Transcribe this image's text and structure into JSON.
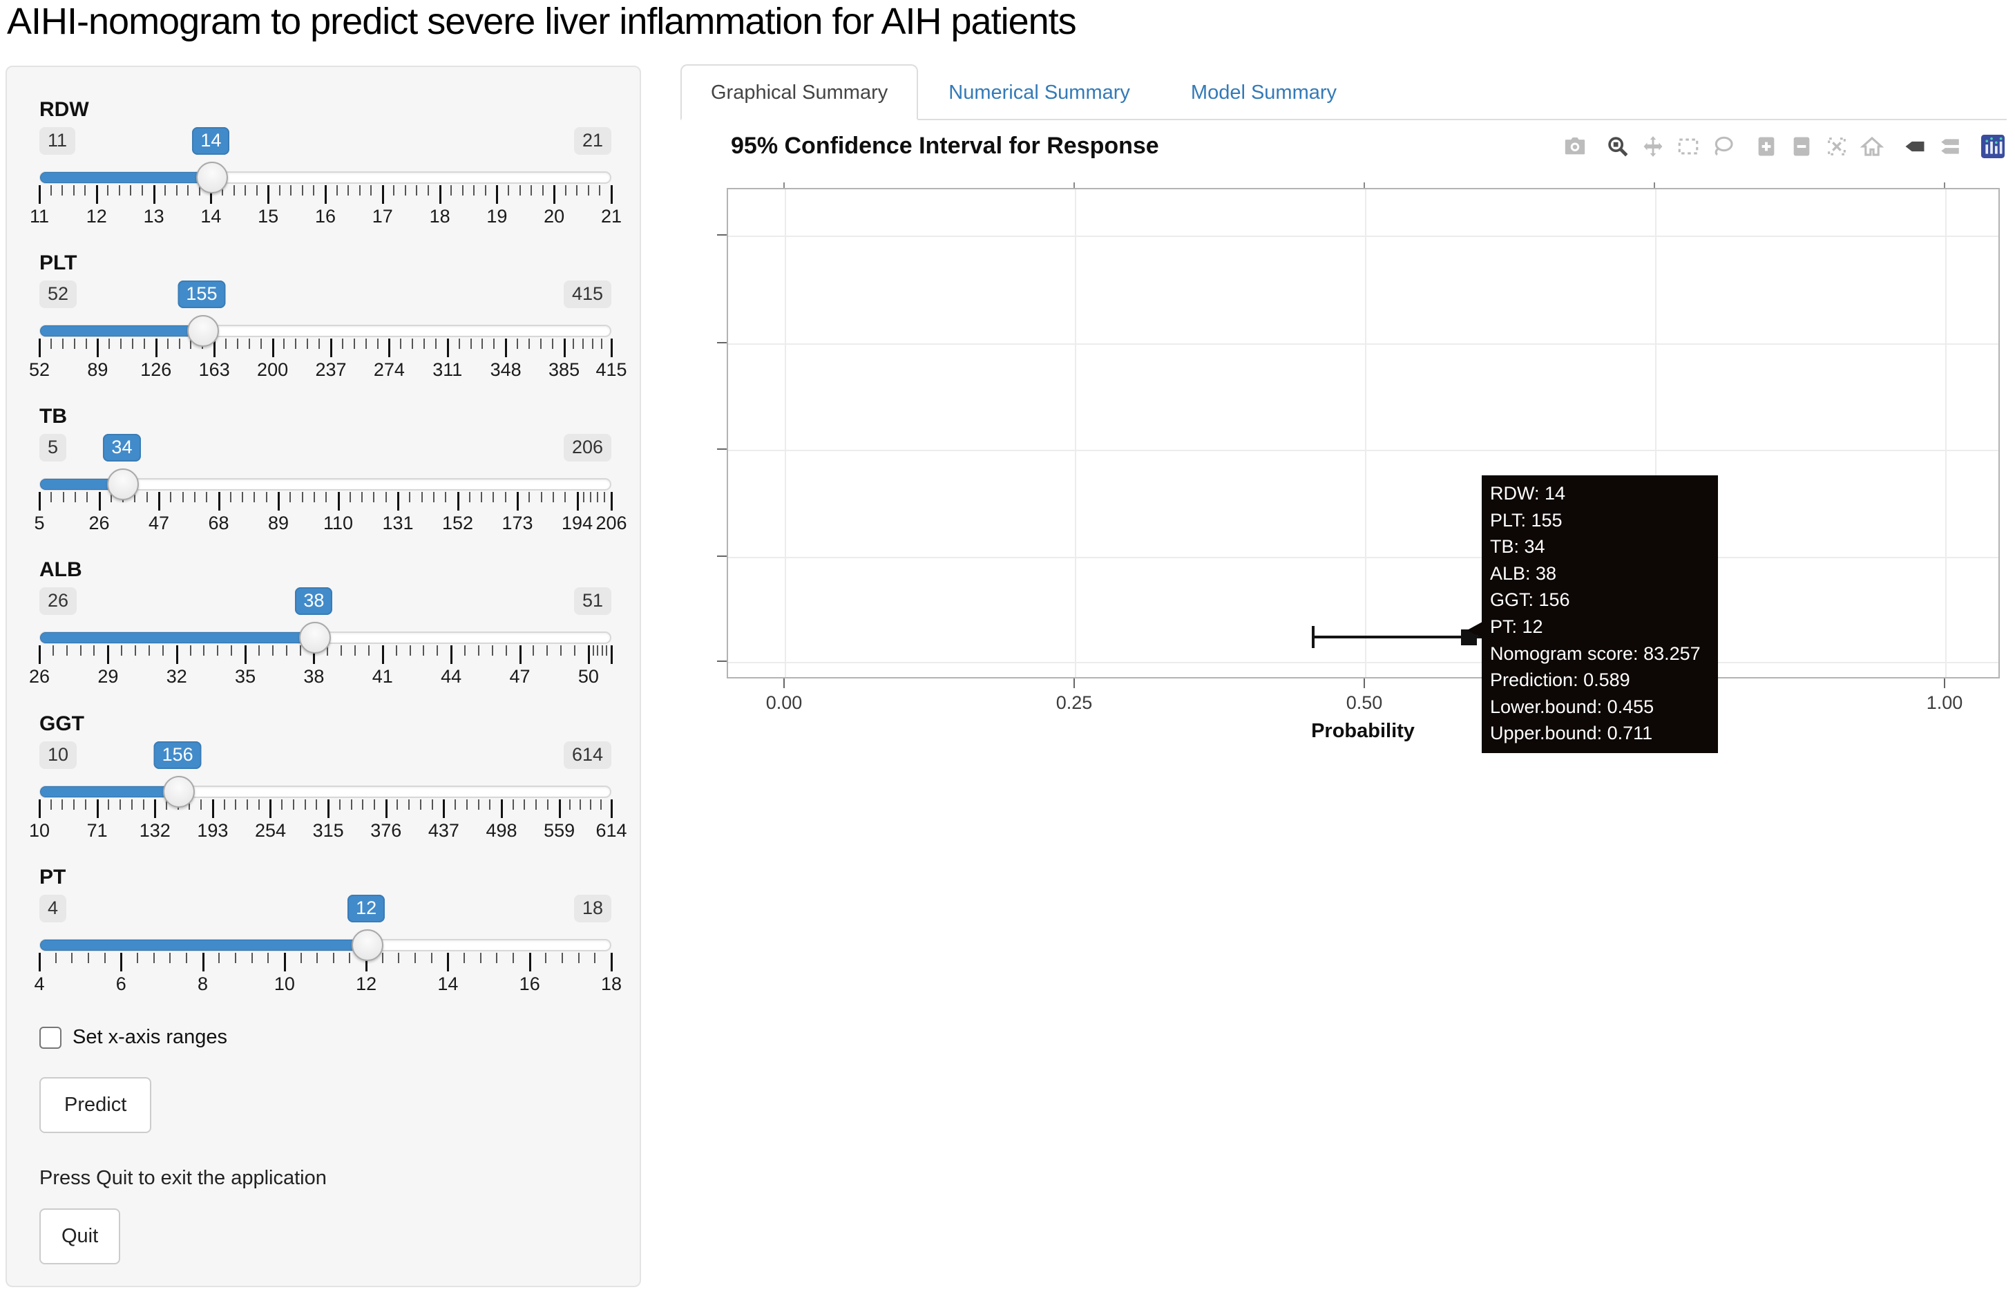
{
  "page_title": "AIHI-nomogram to predict severe liver inflammation for AIH patients",
  "colors": {
    "accent_blue": "#428bca",
    "link_blue": "#337ab7",
    "tooltip_bg": "#0d0705",
    "tab_border": "#dddddd"
  },
  "sidebar": {
    "sliders": [
      {
        "label": "RDW",
        "min": 11,
        "max": 21,
        "value": 14,
        "tick_values": [
          11,
          12,
          13,
          14,
          15,
          16,
          17,
          18,
          19,
          20,
          21
        ],
        "tick_labels": [
          "11",
          "12",
          "13",
          "14",
          "15",
          "16",
          "17",
          "18",
          "19",
          "20",
          "21"
        ]
      },
      {
        "label": "PLT",
        "min": 52,
        "max": 415,
        "value": 155,
        "tick_values": [
          52,
          89,
          126,
          163,
          200,
          237,
          274,
          311,
          348,
          385,
          415
        ],
        "tick_labels": [
          "52",
          "89",
          "126",
          "163",
          "200",
          "237",
          "274",
          "311",
          "348",
          "385",
          "415"
        ]
      },
      {
        "label": "TB",
        "min": 5,
        "max": 206,
        "value": 34,
        "tick_values": [
          5,
          26,
          47,
          68,
          89,
          110,
          131,
          152,
          173,
          194,
          206
        ],
        "tick_labels": [
          "5",
          "26",
          "47",
          "68",
          "89",
          "110",
          "131",
          "152",
          "173",
          "194",
          "206"
        ]
      },
      {
        "label": "ALB",
        "min": 26,
        "max": 51,
        "value": 38,
        "tick_values": [
          26,
          29,
          32,
          35,
          38,
          41,
          44,
          47,
          50,
          51
        ],
        "tick_labels": [
          "26",
          "29",
          "32",
          "35",
          "38",
          "41",
          "44",
          "47",
          "50",
          ""
        ]
      },
      {
        "label": "GGT",
        "min": 10,
        "max": 614,
        "value": 156,
        "tick_values": [
          10,
          71,
          132,
          193,
          254,
          315,
          376,
          437,
          498,
          559,
          614
        ],
        "tick_labels": [
          "10",
          "71",
          "132",
          "193",
          "254",
          "315",
          "376",
          "437",
          "498",
          "559",
          "614"
        ]
      },
      {
        "label": "PT",
        "min": 4,
        "max": 18,
        "value": 12,
        "tick_values": [
          4,
          6,
          8,
          10,
          12,
          14,
          16,
          18
        ],
        "tick_labels": [
          "4",
          "6",
          "8",
          "10",
          "12",
          "14",
          "16",
          "18"
        ]
      }
    ],
    "checkbox_label": "Set x-axis ranges",
    "checkbox_checked": false,
    "predict_label": "Predict",
    "quit_note": "Press Quit to exit the application",
    "quit_label": "Quit"
  },
  "main": {
    "tabs": [
      {
        "label": "Graphical Summary",
        "active": true
      },
      {
        "label": "Numerical Summary",
        "active": false
      },
      {
        "label": "Model Summary",
        "active": false
      }
    ],
    "toolbar_icons": [
      {
        "name": "camera-icon",
        "active": false,
        "group": 0
      },
      {
        "name": "zoom-icon",
        "active": true,
        "group": 1
      },
      {
        "name": "pan-icon",
        "active": false,
        "group": 1
      },
      {
        "name": "box-select-icon",
        "active": false,
        "group": 1
      },
      {
        "name": "lasso-select-icon",
        "active": false,
        "group": 1
      },
      {
        "name": "zoom-in-icon",
        "active": false,
        "group": 2
      },
      {
        "name": "zoom-out-icon",
        "active": false,
        "group": 2
      },
      {
        "name": "autoscale-icon",
        "active": false,
        "group": 2
      },
      {
        "name": "reset-home-icon",
        "active": false,
        "group": 2
      },
      {
        "name": "hover-closest-icon",
        "active": true,
        "group": 3
      },
      {
        "name": "hover-compare-icon",
        "active": false,
        "group": 3
      },
      {
        "name": "plotly-logo-icon",
        "active": true,
        "group": 4
      }
    ]
  },
  "chart_data": {
    "type": "scatter",
    "title": "95% Confidence Interval for Response",
    "xlabel": "Probability",
    "x_tick_values": [
      0,
      0.25,
      0.5,
      0.75,
      1.0
    ],
    "x_tick_labels": [
      "0.00",
      "0.25",
      "0.50",
      "0.75",
      "1.00"
    ],
    "xlim": [
      -0.049,
      1.048
    ],
    "grid": true,
    "legend": "none",
    "points": [
      {
        "prediction": 0.589,
        "lower_bound": 0.455,
        "upper_bound": 0.711,
        "nomogram_score": 83.257
      }
    ],
    "tooltip_lines": [
      "RDW: 14",
      "PLT: 155",
      "TB: 34",
      "ALB: 38",
      "GGT: 156",
      "PT: 12",
      "Nomogram score: 83.257",
      "Prediction: 0.589",
      "Lower.bound: 0.455",
      "Upper.bound: 0.711"
    ]
  }
}
